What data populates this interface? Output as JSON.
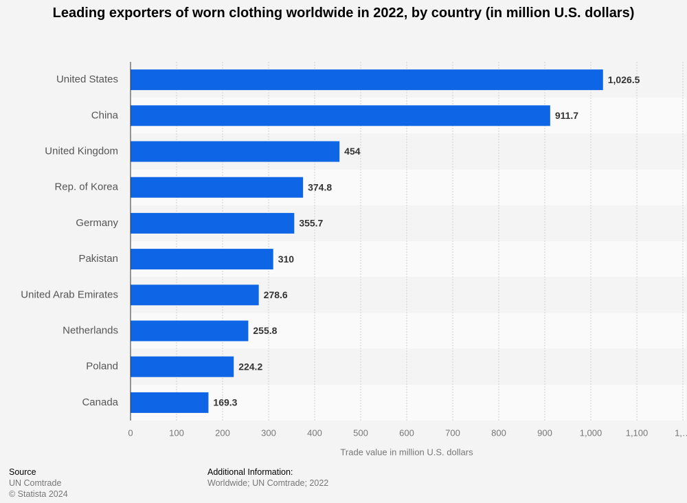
{
  "chart_data": {
    "type": "bar",
    "orientation": "horizontal",
    "title": "Leading exporters of worn clothing worldwide in 2022, by country (in million U.S. dollars)",
    "categories": [
      "United States",
      "China",
      "United Kingdom",
      "Rep. of Korea",
      "Germany",
      "Pakistan",
      "United Arab Emirates",
      "Netherlands",
      "Poland",
      "Canada"
    ],
    "values": [
      1026.5,
      911.7,
      454,
      374.8,
      355.7,
      310,
      278.6,
      255.8,
      224.2,
      169.3
    ],
    "value_labels": [
      "1,026.5",
      "911.7",
      "454",
      "374.8",
      "355.7",
      "310",
      "278.6",
      "255.8",
      "224.2",
      "169.3"
    ],
    "color": "#0e65e5",
    "xlabel": "Trade value in million U.S. dollars",
    "xlim": [
      0,
      1200
    ],
    "xticks": [
      0,
      100,
      200,
      300,
      400,
      500,
      600,
      700,
      800,
      900,
      {
        "value": 1000,
        "label": "1,000"
      },
      {
        "value": 1100,
        "label": "1,100"
      },
      {
        "value": 1200,
        "label": "1,…"
      }
    ],
    "grid": true
  },
  "footer": {
    "source_heading": "Source",
    "source": "UN Comtrade",
    "copyright": "© Statista 2024",
    "info_heading": "Additional Information:",
    "info": "Worldwide; UN Comtrade; 2022"
  }
}
